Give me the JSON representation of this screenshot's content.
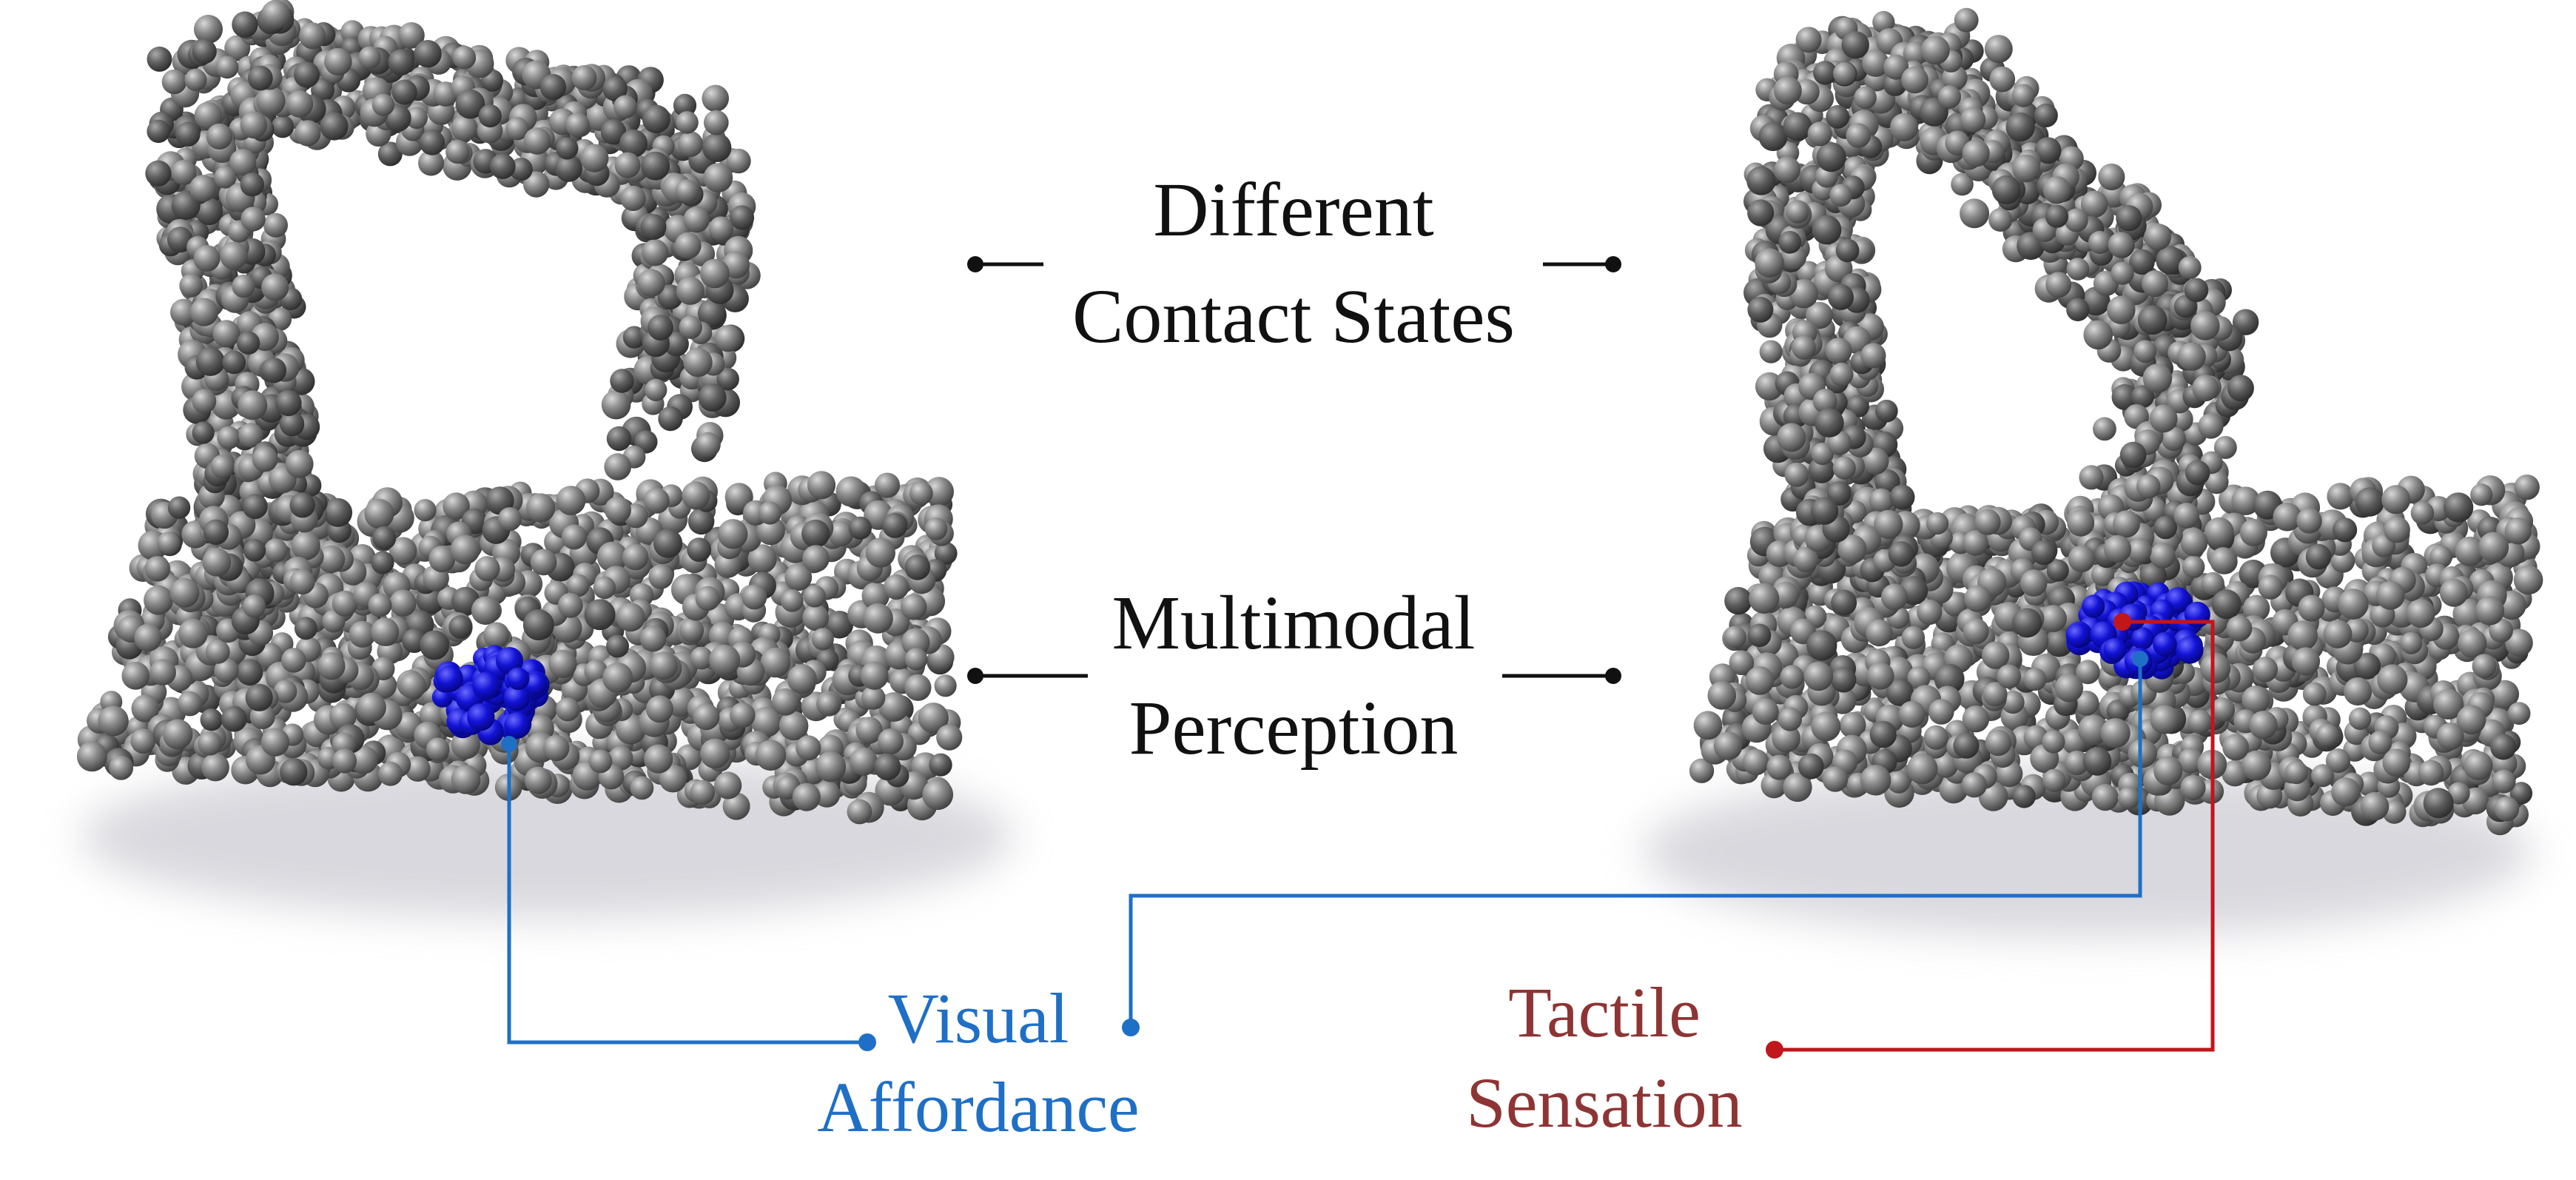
{
  "labels": {
    "contact_line1": "Different",
    "contact_line2": "Contact States",
    "perception_line1": "Multimodal",
    "perception_line2": "Perception",
    "visual_line1": "Visual",
    "visual_line2": "Affordance",
    "tactile_line1": "Tactile",
    "tactile_line2": "Sensation"
  },
  "colors": {
    "text_dark": "#111111",
    "visual_blue": "#1f6fc6",
    "tactile_red": "#c0161c",
    "tactile_text": "#8e3434",
    "particle_gray": "#6d6d6d",
    "particle_dark": "#454545",
    "contact_blue": "#1414d8"
  }
}
